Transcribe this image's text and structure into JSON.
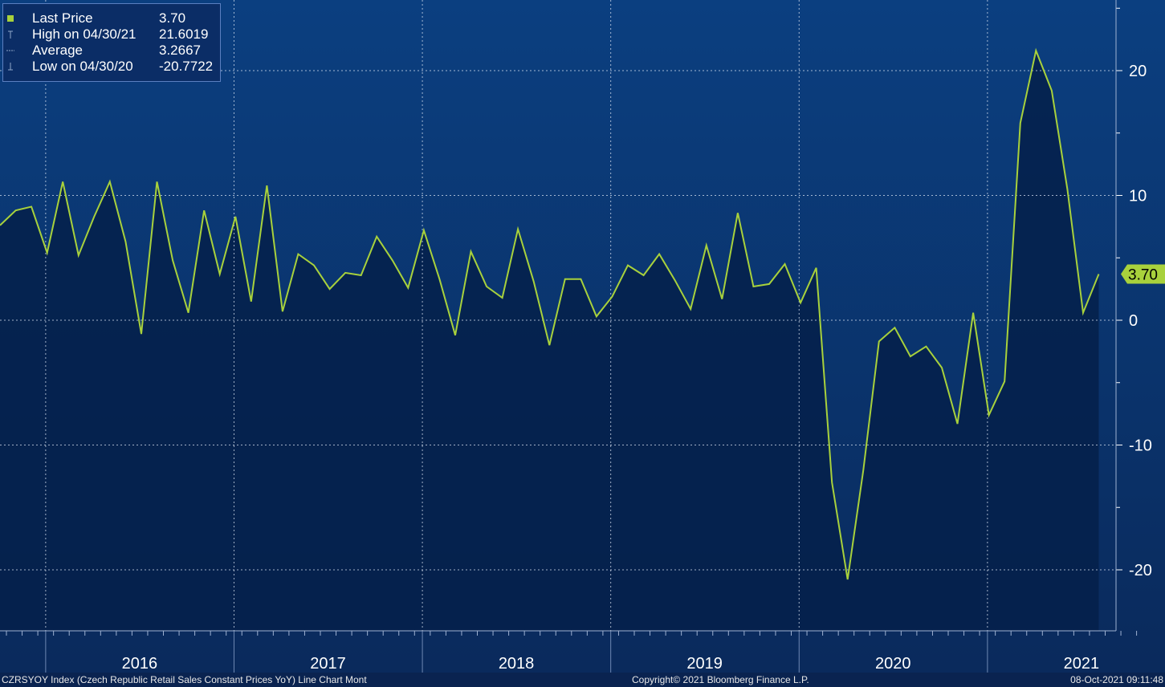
{
  "legend": [
    {
      "icon": "square-marker-icon",
      "label": "Last Price",
      "value": "3.70"
    },
    {
      "icon": "high-marker-icon",
      "label": "High on 04/30/21",
      "value": "21.6019"
    },
    {
      "icon": "average-marker-icon",
      "label": "Average",
      "value": "3.2667"
    },
    {
      "icon": "low-marker-icon",
      "label": "Low on 04/30/20",
      "value": "-20.7722"
    }
  ],
  "last_price_tag": "3.70",
  "footer": {
    "left": "CZRSYOY Index (Czech Republic Retail Sales Constant Prices YoY) Line Chart  Mont",
    "center": "Copyright© 2021 Bloomberg Finance L.P.",
    "right": "08-Oct-2021 09:11:48"
  },
  "colors": {
    "line": "#a8d13c",
    "area": "#05204a",
    "background_top": "#0b3f80",
    "background_bottom": "#0a2a5c"
  },
  "chart_data": {
    "type": "area",
    "ylim": [
      -23,
      25
    ],
    "y_ticks": [
      20,
      10,
      0,
      -10,
      -20
    ],
    "x_tick_labels": [
      "2016",
      "2017",
      "2018",
      "2019",
      "2020",
      "2021"
    ],
    "grid": true,
    "legend_position": "top-left",
    "series": [
      {
        "x": [
          "2015-10",
          "2015-11",
          "2015-12",
          "2016-01",
          "2016-02",
          "2016-03",
          "2016-04",
          "2016-05",
          "2016-06",
          "2016-07",
          "2016-08",
          "2016-09",
          "2016-10",
          "2016-11",
          "2016-12",
          "2017-01",
          "2017-02",
          "2017-03",
          "2017-04",
          "2017-05",
          "2017-06",
          "2017-07",
          "2017-08",
          "2017-09",
          "2017-10",
          "2017-11",
          "2017-12",
          "2018-01",
          "2018-02",
          "2018-03",
          "2018-04",
          "2018-05",
          "2018-06",
          "2018-07",
          "2018-08",
          "2018-09",
          "2018-10",
          "2018-11",
          "2018-12",
          "2019-01",
          "2019-02",
          "2019-03",
          "2019-04",
          "2019-05",
          "2019-06",
          "2019-07",
          "2019-08",
          "2019-09",
          "2019-10",
          "2019-11",
          "2019-12",
          "2020-01",
          "2020-02",
          "2020-03",
          "2020-04",
          "2020-05",
          "2020-06",
          "2020-07",
          "2020-08",
          "2020-09",
          "2020-10",
          "2020-11",
          "2020-12",
          "2021-01",
          "2021-02",
          "2021-03",
          "2021-04",
          "2021-05",
          "2021-06",
          "2021-07",
          "2021-08"
        ],
        "values": [
          7.6,
          8.8,
          9.1,
          5.4,
          11.1,
          5.2,
          8.3,
          11.1,
          6.3,
          -1.1,
          11.1,
          4.8,
          0.6,
          8.8,
          3.7,
          8.3,
          1.5,
          10.8,
          0.7,
          5.3,
          4.4,
          2.5,
          3.8,
          3.6,
          6.7,
          4.8,
          2.6,
          7.2,
          3.3,
          -1.2,
          5.5,
          2.7,
          1.8,
          7.3,
          3.1,
          -2.0,
          3.3,
          3.3,
          0.3,
          1.9,
          4.4,
          3.6,
          5.3,
          3.2,
          0.9,
          6.0,
          1.7,
          8.6,
          2.7,
          2.9,
          4.5,
          1.4,
          4.2,
          -13.0,
          -20.77,
          -12.0,
          -1.7,
          -0.6,
          -2.9,
          -2.1,
          -3.8,
          -8.3,
          0.6,
          -7.6,
          -4.9,
          15.8,
          21.6,
          18.4,
          10.5,
          0.6,
          3.7
        ]
      }
    ]
  }
}
